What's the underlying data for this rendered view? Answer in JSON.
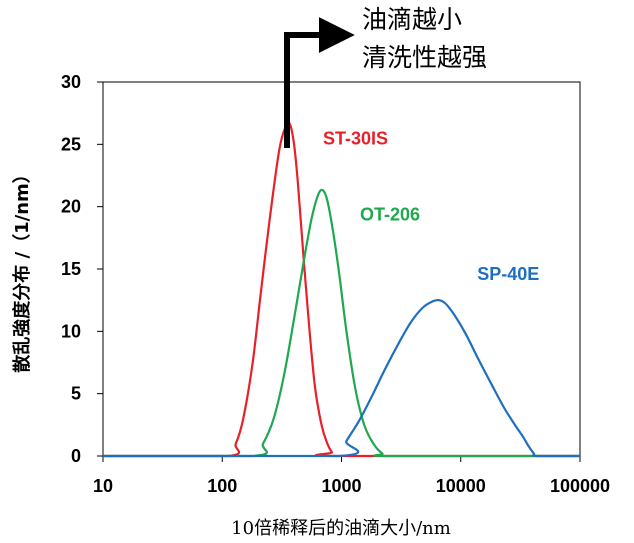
{
  "chart_data": {
    "type": "line",
    "xscale": "log",
    "xlim": [
      10,
      100000
    ],
    "ylim": [
      0,
      30
    ],
    "xticks": [
      "10",
      "100",
      "1000",
      "10000",
      "100000"
    ],
    "yticks": [
      "0",
      "5",
      "10",
      "15",
      "20",
      "25",
      "30"
    ],
    "xlabel": "10倍稀释后的油滴大小/nm",
    "ylabel": "散乱強度分布 /（1/nm）",
    "grid": false,
    "annotation": [
      "油滴越小",
      "清洗性越强"
    ],
    "series": [
      {
        "name": "ST-30IS",
        "color": "#e8202a",
        "x": [
          110,
          130,
          150,
          180,
          210,
          250,
          300,
          340,
          370,
          400,
          430,
          480,
          540,
          600,
          680,
          760,
          830,
          880
        ],
        "y": [
          0,
          1,
          3,
          7.5,
          13,
          19,
          24.5,
          26.4,
          26.6,
          25,
          22,
          16,
          10,
          5.5,
          2.5,
          1,
          0.3,
          0
        ]
      },
      {
        "name": "OT-206",
        "color": "#1fa84f",
        "x": [
          180,
          220,
          270,
          330,
          400,
          480,
          560,
          640,
          700,
          760,
          850,
          960,
          1100,
          1300,
          1550,
          1850,
          2200,
          2600
        ],
        "y": [
          0,
          1,
          3,
          6.5,
          11,
          15.5,
          19,
          21,
          21.3,
          20.5,
          18,
          14.5,
          10,
          5.5,
          2.5,
          1,
          0.2,
          0
        ]
      },
      {
        "name": "SP-40E",
        "color": "#1f6fbf",
        "x": [
          950,
          1100,
          1400,
          1800,
          2300,
          3000,
          3800,
          4800,
          5800,
          6600,
          7500,
          9000,
          11000,
          14000,
          18000,
          23000,
          28000,
          33000,
          37000,
          41000,
          44000
        ],
        "y": [
          0,
          1.2,
          2.8,
          4.8,
          6.9,
          9,
          10.7,
          11.9,
          12.4,
          12.5,
          12.2,
          11.2,
          9.8,
          7.8,
          5.8,
          3.9,
          2.6,
          1.6,
          0.8,
          0.2,
          0
        ]
      }
    ]
  }
}
